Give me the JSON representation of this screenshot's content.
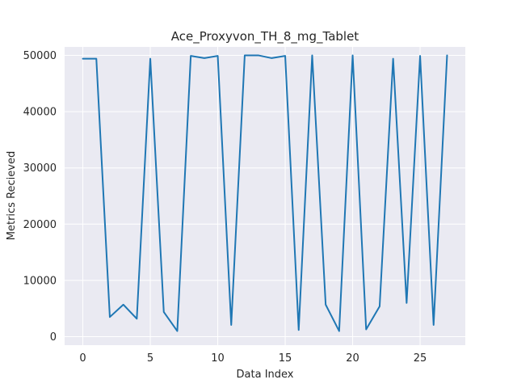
{
  "chart_data": {
    "type": "line",
    "title": "Ace_Proxyvon_TH_8_mg_Tablet",
    "xlabel": "Data Index",
    "ylabel": "Metrics Recieved",
    "xlim": [
      -1.35,
      28.35
    ],
    "ylim": [
      -1500,
      51500
    ],
    "xticks": [
      0,
      5,
      10,
      15,
      20,
      25
    ],
    "xtick_labels": [
      "0",
      "5",
      "10",
      "15",
      "20",
      "25"
    ],
    "yticks": [
      0,
      10000,
      20000,
      30000,
      40000,
      50000
    ],
    "ytick_labels": [
      "0",
      "10000",
      "20000",
      "30000",
      "40000",
      "50000"
    ],
    "grid": true,
    "background": "#eaeaf2",
    "series": [
      {
        "color": "#1f77b4",
        "x": [
          0,
          1,
          2,
          3,
          4,
          5,
          6,
          7,
          8,
          9,
          10,
          11,
          12,
          13,
          14,
          15,
          16,
          17,
          18,
          19,
          20,
          21,
          22,
          23,
          24,
          25,
          26,
          27
        ],
        "values": [
          49400,
          49400,
          3500,
          5700,
          3200,
          49400,
          4400,
          1000,
          49900,
          49500,
          49900,
          2100,
          50000,
          50000,
          49500,
          49900,
          1200,
          50000,
          5700,
          1000,
          50000,
          1300,
          5400,
          49400,
          6000,
          49900,
          2100,
          50000
        ]
      }
    ]
  }
}
